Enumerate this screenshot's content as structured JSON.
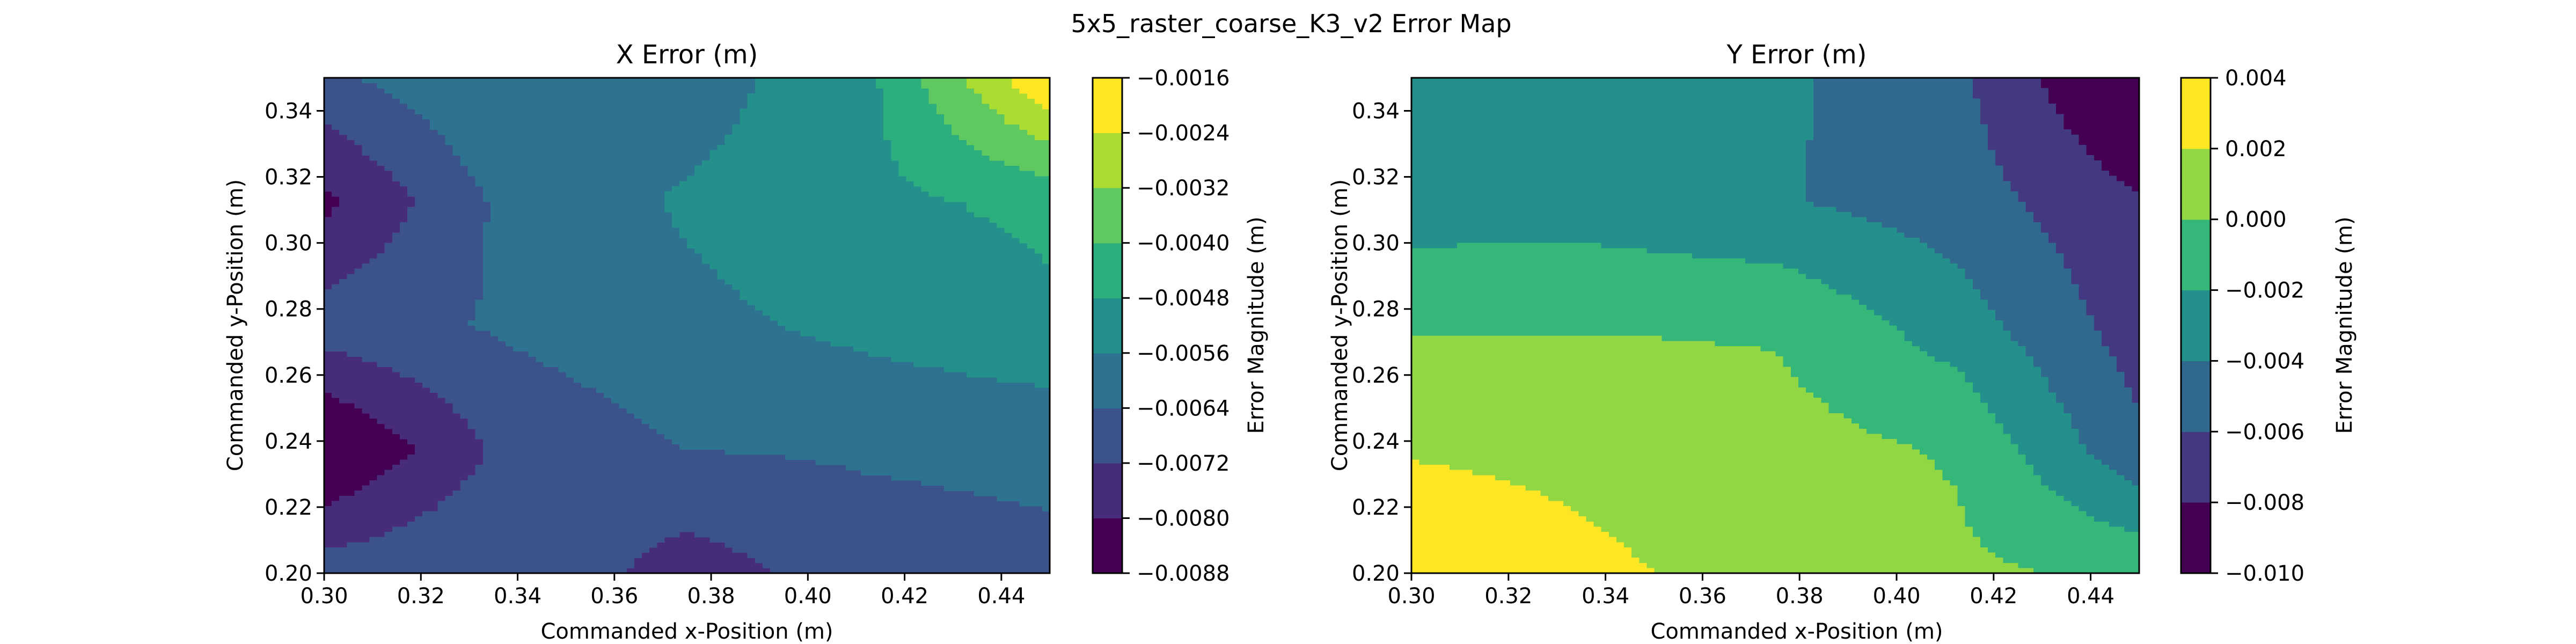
{
  "figure": {
    "title": "5x5_raster_coarse_K3_v2 Error Map"
  },
  "chart_data": [
    {
      "type": "heatmap",
      "subtype": "filled-contour",
      "title": "X Error (m)",
      "xlabel": "Commanded x-Position (m)",
      "ylabel": "Commanded y-Position (m)",
      "colorbar_label": "Error Magnitude (m)",
      "colormap": "viridis",
      "x": [
        0.3,
        0.3375,
        0.375,
        0.4125,
        0.45
      ],
      "y": [
        0.2,
        0.2375,
        0.275,
        0.3125,
        0.35
      ],
      "z": [
        [
          -0.0068,
          -0.0064,
          -0.0076,
          -0.0068,
          -0.0066
        ],
        [
          -0.009,
          -0.007,
          -0.0064,
          -0.0063,
          -0.0062
        ],
        [
          -0.0068,
          -0.0063,
          -0.0058,
          -0.0054,
          -0.005
        ],
        [
          -0.0082,
          -0.0062,
          -0.0055,
          -0.005,
          -0.0046
        ],
        [
          -0.0066,
          -0.0056,
          -0.006,
          -0.005,
          -0.0016
        ]
      ],
      "levels": [
        -0.0088,
        -0.008,
        -0.0072,
        -0.0064,
        -0.0056,
        -0.0048,
        -0.004,
        -0.0032,
        -0.0024,
        -0.0016
      ],
      "level_labels": [
        "−0.0088",
        "−0.0080",
        "−0.0072",
        "−0.0064",
        "−0.0056",
        "−0.0048",
        "−0.0040",
        "−0.0032",
        "−0.0024",
        "−0.0016"
      ],
      "xlim": [
        0.3,
        0.45
      ],
      "ylim": [
        0.2,
        0.35
      ],
      "xticks": [
        0.3,
        0.32,
        0.34,
        0.36,
        0.38,
        0.4,
        0.42,
        0.44
      ],
      "xtick_labels": [
        "0.30",
        "0.32",
        "0.34",
        "0.36",
        "0.38",
        "0.40",
        "0.42",
        "0.44"
      ],
      "yticks": [
        0.2,
        0.22,
        0.24,
        0.26,
        0.28,
        0.3,
        0.32,
        0.34
      ],
      "ytick_labels": [
        "0.20",
        "0.22",
        "0.24",
        "0.26",
        "0.28",
        "0.30",
        "0.32",
        "0.34"
      ],
      "grid": false
    },
    {
      "type": "heatmap",
      "subtype": "filled-contour",
      "title": "Y Error (m)",
      "xlabel": "Commanded x-Position (m)",
      "ylabel": "Commanded y-Position (m)",
      "colorbar_label": "Error Magnitude (m)",
      "colormap": "viridis",
      "x": [
        0.3,
        0.3375,
        0.375,
        0.4125,
        0.45
      ],
      "y": [
        0.2,
        0.2375,
        0.275,
        0.3125,
        0.35
      ],
      "z": [
        [
          0.004,
          0.0024,
          0.0012,
          0.0004,
          -0.0004
        ],
        [
          0.0018,
          0.0014,
          0.0008,
          -0.0002,
          -0.0056
        ],
        [
          -0.0002,
          -0.0001,
          -0.0002,
          -0.003,
          -0.007
        ],
        [
          -0.003,
          -0.003,
          -0.0038,
          -0.005,
          -0.0078
        ],
        [
          -0.0028,
          -0.003,
          -0.0036,
          -0.0056,
          -0.011
        ]
      ],
      "levels": [
        -0.01,
        -0.008,
        -0.006,
        -0.004,
        -0.002,
        0.0,
        0.002,
        0.004
      ],
      "level_labels": [
        "−0.010",
        "−0.008",
        "−0.006",
        "−0.004",
        "−0.002",
        "0.000",
        "0.002",
        "0.004"
      ],
      "xlim": [
        0.3,
        0.45
      ],
      "ylim": [
        0.2,
        0.35
      ],
      "xticks": [
        0.3,
        0.32,
        0.34,
        0.36,
        0.38,
        0.4,
        0.42,
        0.44
      ],
      "xtick_labels": [
        "0.30",
        "0.32",
        "0.34",
        "0.36",
        "0.38",
        "0.40",
        "0.42",
        "0.44"
      ],
      "yticks": [
        0.2,
        0.22,
        0.24,
        0.26,
        0.28,
        0.3,
        0.32,
        0.34
      ],
      "ytick_labels": [
        "0.20",
        "0.22",
        "0.24",
        "0.26",
        "0.28",
        "0.30",
        "0.32",
        "0.34"
      ],
      "grid": false
    }
  ]
}
